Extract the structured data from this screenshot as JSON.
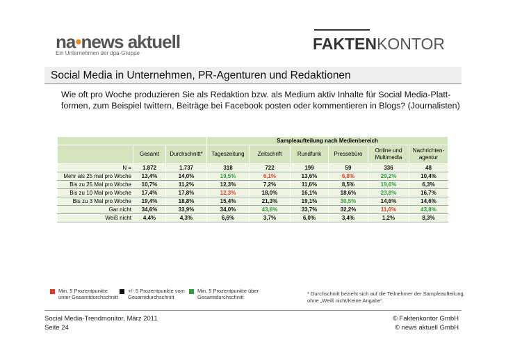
{
  "logos": {
    "news_aktuell": {
      "prefix": "na",
      "name": "news aktuell",
      "tagline": "Ein Unternehmen der dpa-Gruppe"
    },
    "faktenkontor": {
      "bold": "FAKTEN",
      "light": "KONTOR"
    }
  },
  "title": "Social Media in Unternehmen, PR-Agenturen und Redaktionen",
  "question": [
    "Wie oft pro Woche produzieren Sie als Redaktion bzw. als Medium aktiv Inhalte für Social Media-Platt-",
    "formen, zum Beispiel twittern, Beiträge bei Facebook posten oder kommentieren in Blogs? (Journalisten)"
  ],
  "table": {
    "group_header": "Sampleaufteilung nach Medienbereich",
    "columns": [
      "Gesamt",
      "Durchschnitt*",
      "Tageszeitung",
      "Zeitschrift",
      "Rundfunk",
      "Pressebüro",
      "Online und Multimedia",
      "Nachrichten-agentur"
    ],
    "rows": [
      {
        "label": "N =",
        "cells": [
          "1.872",
          "1.737",
          "318",
          "722",
          "199",
          "59",
          "336",
          "48"
        ],
        "colors": [
          "black",
          "black",
          "black",
          "black",
          "black",
          "black",
          "black",
          "black"
        ]
      },
      {
        "label": "Mehr als 25 mal pro Woche",
        "cells": [
          "13,4%",
          "14,0%",
          "19,5%",
          "6,1%",
          "13,6%",
          "6,8%",
          "29,2%",
          "10,4%"
        ],
        "colors": [
          "black",
          "black",
          "green",
          "red",
          "black",
          "red",
          "green",
          "black"
        ]
      },
      {
        "label": "Bis zu 25 Mal pro Woche",
        "cells": [
          "10,7%",
          "11,2%",
          "12,3%",
          "7,2%",
          "11,6%",
          "8,5%",
          "19,6%",
          "6,3%"
        ],
        "colors": [
          "black",
          "black",
          "black",
          "black",
          "black",
          "black",
          "green",
          "black"
        ]
      },
      {
        "label": "Bis zu 10 Mal pro Woche",
        "cells": [
          "17,4%",
          "17,8%",
          "12,3%",
          "18,0%",
          "16,1%",
          "18,6%",
          "23,8%",
          "16,7%"
        ],
        "colors": [
          "black",
          "black",
          "red",
          "black",
          "black",
          "black",
          "green",
          "black"
        ]
      },
      {
        "label": "Bis zu 3 Mal pro Woche",
        "cells": [
          "19,4%",
          "18,8%",
          "15,4%",
          "21,3%",
          "19,1%",
          "30,5%",
          "14,6%",
          "14,6%"
        ],
        "colors": [
          "black",
          "black",
          "black",
          "black",
          "black",
          "green",
          "black",
          "black"
        ]
      },
      {
        "label": "Gar nicht",
        "cells": [
          "34,6%",
          "33,9%",
          "34,0%",
          "43,6%",
          "33,7%",
          "32,2%",
          "11,6%",
          "43,8%"
        ],
        "colors": [
          "black",
          "black",
          "black",
          "green",
          "black",
          "black",
          "red",
          "green"
        ]
      },
      {
        "label": "Weiß nicht",
        "cells": [
          "4,4%",
          "4,3%",
          "6,6%",
          "3,7%",
          "6,0%",
          "3,4%",
          "1,2%",
          "8,3%"
        ],
        "colors": [
          "black",
          "black",
          "black",
          "black",
          "black",
          "black",
          "black",
          "black"
        ]
      }
    ]
  },
  "legend": [
    {
      "text": "Min. 5 Prozentpunkte unter Gesamtdurchschnitt",
      "color": "#e03a26"
    },
    {
      "text": "+/- 5 Prozentpunkte vom Gesamtdurchschnitt",
      "color": "#111111"
    },
    {
      "text": "Min. 5 Prozentpunkte über Gesamtdurchschnitt",
      "color": "#2f9a3c"
    }
  ],
  "footnote": "* Durchschnitt bezieht sich auf die Teilnehmer der Sampleaufteilung, ohne „Weiß nicht/Keine Angabe“.",
  "footer": {
    "source": "Social Media-Trendmonitor, März 2011",
    "page": "Seite 24",
    "copyright": [
      "© Faktenkontor GmbH",
      "© news aktuell GmbH"
    ]
  }
}
